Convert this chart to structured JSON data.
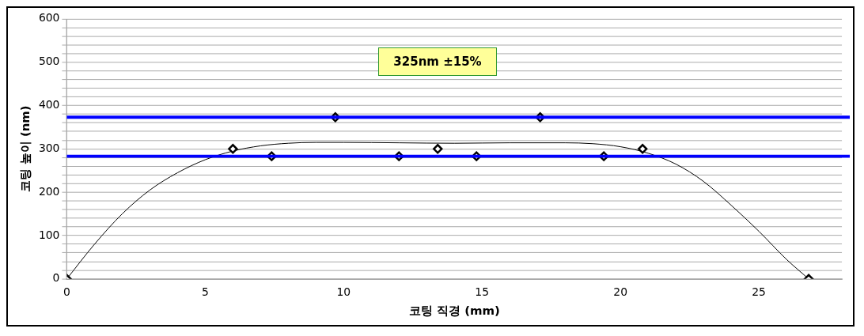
{
  "chart_data": {
    "type": "scatter",
    "xlabel": "코팅 직경 (mm)",
    "ylabel": "코팅 높이 (nm)",
    "xlim": [
      0,
      28
    ],
    "xticks": [
      0,
      5,
      10,
      15,
      20,
      25
    ],
    "ylim": [
      0,
      600
    ],
    "yticks": [
      0,
      {
        "value": 20,
        "label": null
      },
      {
        "value": 40,
        "label": null
      },
      {
        "value": 60,
        "label": null
      },
      {
        "value": 80,
        "label": null
      },
      100,
      {
        "value": 120,
        "label": null
      },
      {
        "value": 140,
        "label": null
      },
      {
        "value": 160,
        "label": null
      },
      {
        "value": 180,
        "label": null
      },
      200,
      {
        "value": 220,
        "label": null
      },
      {
        "value": 240,
        "label": null
      },
      {
        "value": 260,
        "label": null
      },
      {
        "value": 280,
        "label": null
      },
      300,
      {
        "value": 320,
        "label": null
      },
      {
        "value": 340,
        "label": null
      },
      {
        "value": 360,
        "label": null
      },
      {
        "value": 380,
        "label": null
      },
      400,
      {
        "value": 420,
        "label": null
      },
      {
        "value": 440,
        "label": null
      },
      {
        "value": 460,
        "label": null
      },
      {
        "value": 480,
        "label": null
      },
      500,
      {
        "value": 520,
        "label": null
      },
      {
        "value": 540,
        "label": null
      },
      {
        "value": 560,
        "label": null
      },
      {
        "value": 580,
        "label": null
      },
      600
    ],
    "grid": "y",
    "legend": false,
    "series": [
      {
        "type": "scatter",
        "color": "#000000",
        "marker": "diamond",
        "x": [
          0,
          6,
          7.4,
          9.7,
          12,
          13.4,
          14.8,
          17.1,
          19.4,
          20.8,
          26.8
        ],
        "values": [
          0,
          300,
          283,
          373,
          283,
          300,
          283,
          373,
          283,
          300,
          0
        ]
      },
      {
        "type": "line",
        "color": "#000000",
        "marker": "none",
        "x": [
          0,
          1,
          2,
          3,
          4,
          5,
          6,
          7,
          8,
          9,
          10,
          12,
          14,
          16,
          18,
          19,
          20,
          21,
          22,
          23,
          24,
          25,
          26,
          26.8
        ],
        "values": [
          0,
          80,
          150,
          205,
          245,
          275,
          295,
          307,
          313,
          315,
          315,
          314,
          313,
          314,
          314,
          312,
          305,
          290,
          265,
          225,
          170,
          110,
          45,
          0
        ]
      }
    ],
    "ref_lines": [
      {
        "axis": "y",
        "value": 373,
        "color": "#0000ff"
      },
      {
        "axis": "y",
        "value": 283,
        "color": "#0000ff"
      }
    ],
    "annotations": [
      "325nm ±15%"
    ]
  }
}
